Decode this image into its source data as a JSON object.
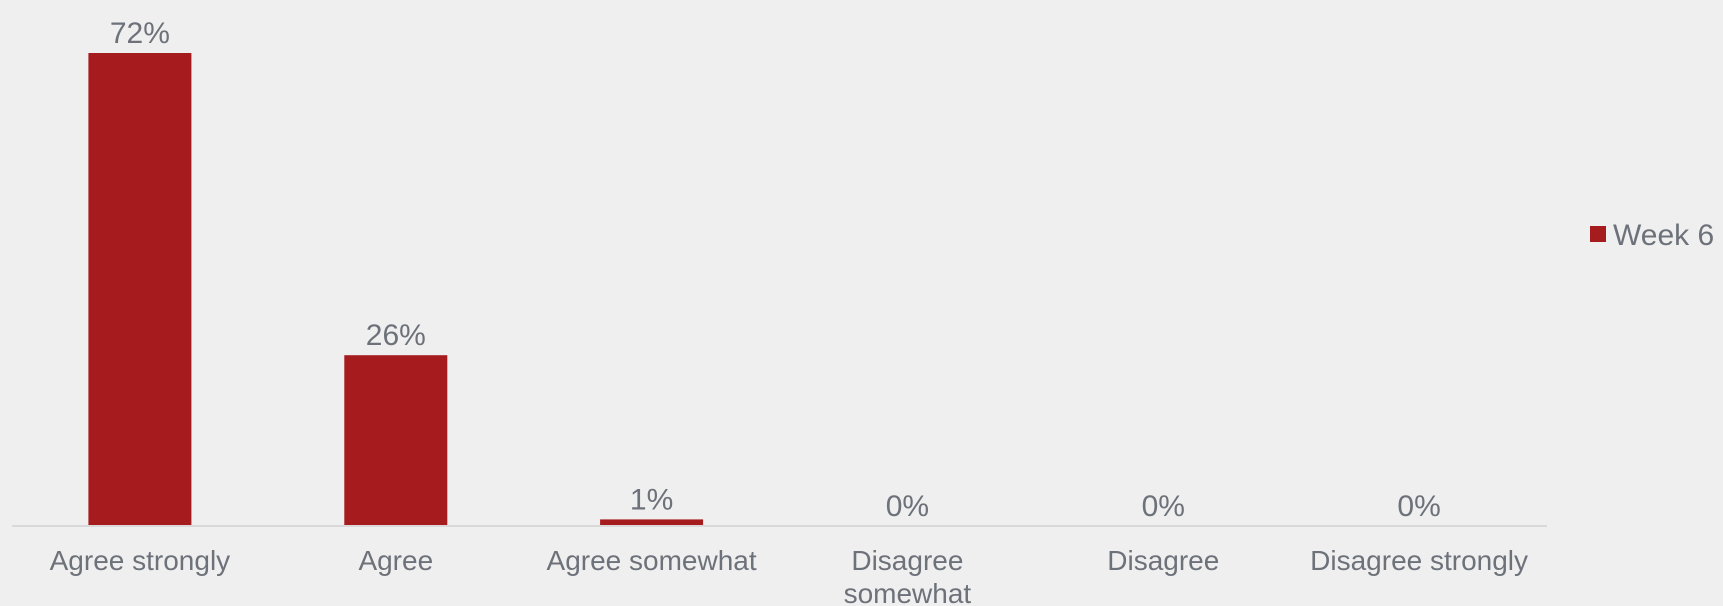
{
  "chart_data": {
    "type": "bar",
    "categories": [
      [
        "Agree strongly"
      ],
      [
        "Agree"
      ],
      [
        "Agree somewhat"
      ],
      [
        "Disagree",
        "somewhat"
      ],
      [
        "Disagree"
      ],
      [
        "Disagree strongly"
      ]
    ],
    "series": [
      {
        "name": "Week 6",
        "values": [
          72,
          26,
          1,
          0,
          0,
          0
        ],
        "labels": [
          "72%",
          "26%",
          "1%",
          "0%",
          "0%",
          "0%"
        ],
        "color": "#a51b1e"
      }
    ],
    "ylim": [
      0,
      72
    ],
    "grid": false,
    "legend": "right",
    "colors": {
      "background": "#efefef",
      "text": "#6d727a",
      "axis": "#d9d9d9"
    }
  }
}
